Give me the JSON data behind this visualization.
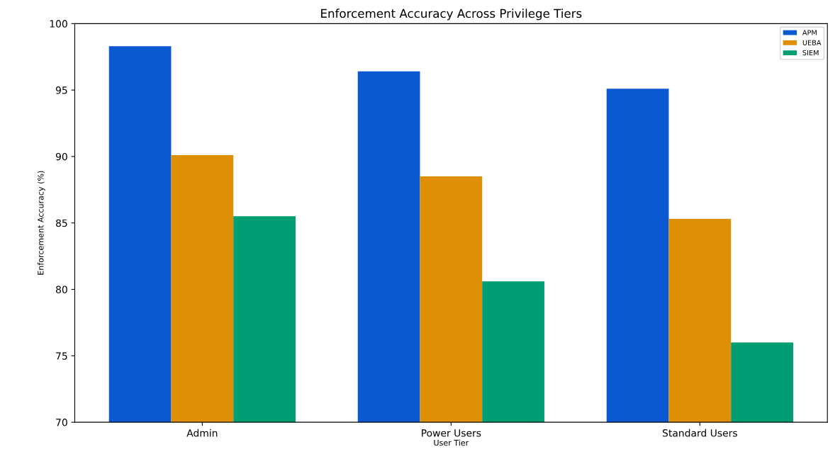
{
  "chart_data": {
    "type": "bar",
    "title": "Enforcement Accuracy Across Privilege Tiers",
    "xlabel": "User Tier",
    "ylabel": "Enforcement Accuracy (%)",
    "categories": [
      "Admin",
      "Power Users",
      "Standard Users"
    ],
    "series": [
      {
        "name": "APM",
        "color": "#0b59d1",
        "values": [
          98.3,
          96.4,
          95.1
        ]
      },
      {
        "name": "UEBA",
        "color": "#de8f05",
        "values": [
          90.1,
          88.5,
          85.3
        ]
      },
      {
        "name": "SIEM",
        "color": "#029e73",
        "values": [
          85.5,
          80.6,
          76.0
        ]
      }
    ],
    "ylim": [
      70,
      100
    ],
    "yticks": [
      70,
      75,
      80,
      85,
      90,
      95,
      100
    ],
    "grid": false,
    "legend": "top right"
  }
}
